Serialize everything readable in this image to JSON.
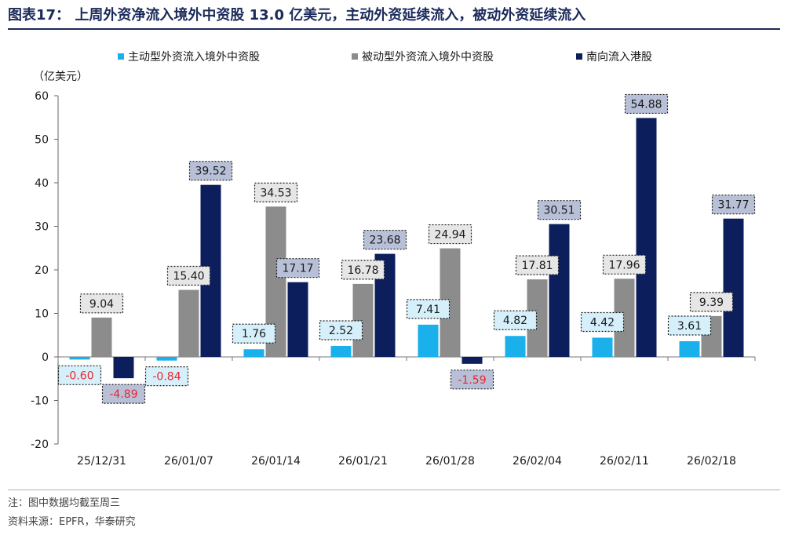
{
  "title": "图表17： 上周外资净流入境外中资股 13.0 亿美元，主动外资延续流入，被动外资延续流入",
  "chart_data": {
    "type": "bar",
    "ylabel": "（亿美元）",
    "ylim": [
      -20,
      60
    ],
    "yticks": [
      -20,
      -10,
      0,
      10,
      20,
      30,
      40,
      50,
      60
    ],
    "categories": [
      "25/12/31",
      "26/01/07",
      "26/01/14",
      "26/01/21",
      "26/01/28",
      "26/02/04",
      "26/02/11",
      "26/02/18"
    ],
    "series": [
      {
        "name": "主动型外资流入境外中资股",
        "color": "#1ab0ec",
        "label_bg": "#d6f0fb",
        "values": [
          -0.6,
          -0.84,
          1.76,
          2.52,
          7.41,
          4.82,
          4.42,
          3.61
        ]
      },
      {
        "name": "被动型外资流入境外中资股",
        "color": "#8c8c8c",
        "label_bg": "#e6e6e6",
        "values": [
          9.04,
          15.4,
          34.53,
          16.78,
          24.94,
          17.81,
          17.96,
          9.39
        ]
      },
      {
        "name": "南向流入港股",
        "color": "#0c1f5c",
        "label_bg": "#b8c0d8",
        "values": [
          -4.89,
          39.52,
          17.17,
          23.68,
          -1.59,
          30.51,
          54.88,
          31.77
        ]
      }
    ],
    "negative_label_color": "#e8262c",
    "legend_position": "top"
  },
  "notes": {
    "note": "注：图中数据均截至周三",
    "source": "资料来源：EPFR，华泰研究"
  }
}
